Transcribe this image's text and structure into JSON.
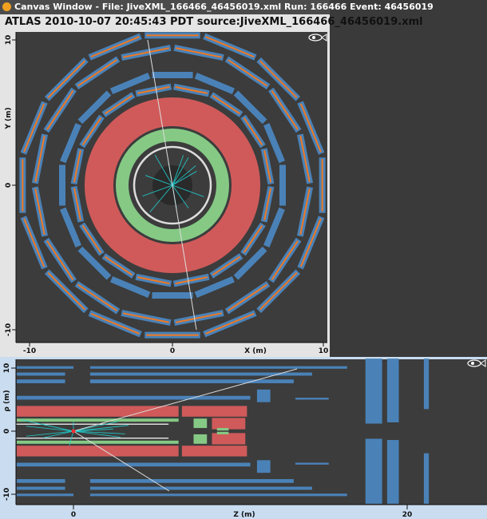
{
  "window": {
    "title": "Canvas Window -  File: JiveXML_166466_46456019.xml  Run: 166466  Event: 46456019",
    "icon": "atlas-app-icon"
  },
  "header": {
    "text": "ATLAS   2010-10-07 20:45:43 PDT source:JiveXML_166466_46456019.xml"
  },
  "xy_view": {
    "x_label": "X (m)",
    "y_label": "Y (m)",
    "x_ticks": [
      "-10",
      "0",
      "10"
    ],
    "y_ticks": [
      "10",
      "0",
      "-10"
    ]
  },
  "rz_view": {
    "x_label": "Z (m)",
    "y_label": "ρ (m)",
    "x_ticks": [
      "0",
      "20"
    ],
    "y_ticks": [
      "10",
      "0",
      "-10"
    ]
  },
  "colors": {
    "background": "#3c3c3c",
    "calorimeter": "#d05a5a",
    "tile": "#d05a5a",
    "lar": "#85c985",
    "muon": "#4a82b8",
    "muon_hits": "#f07820",
    "tracks": "#20d0d0"
  },
  "logo": "fish-eye-icon"
}
